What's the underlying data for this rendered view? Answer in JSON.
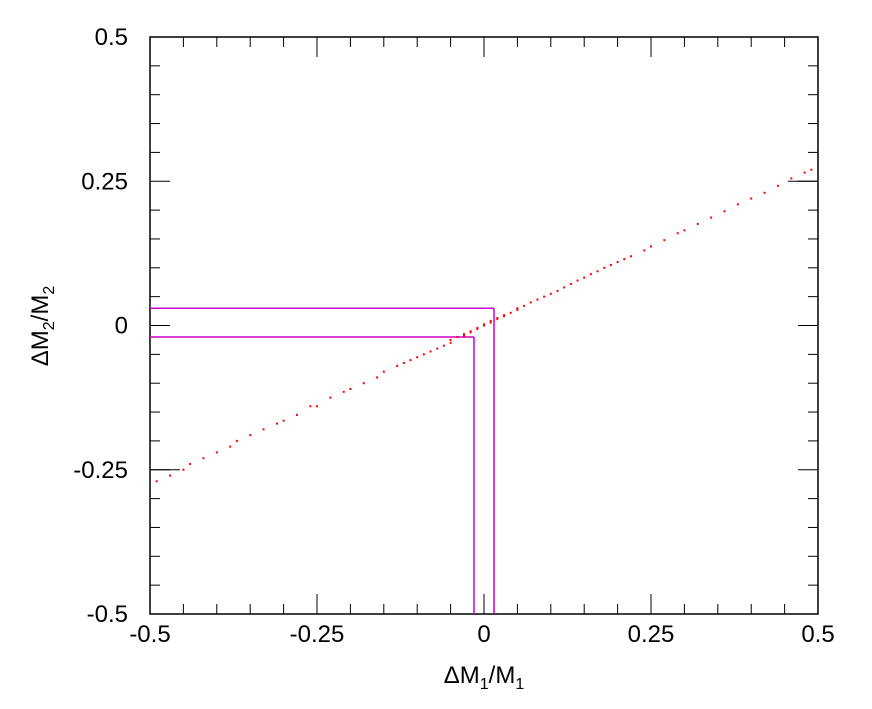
{
  "chart_data": {
    "type": "scatter",
    "title": "",
    "xlabel": "ΔM1/M1",
    "ylabel": "ΔM2/M2",
    "xlabel_parts": {
      "a": "ΔM",
      "a_sub": "1",
      "mid": "/M",
      "b_sub": "1"
    },
    "ylabel_parts": {
      "a": "ΔM",
      "a_sub": "2",
      "mid": "/M",
      "b_sub": "2"
    },
    "xlim": [
      -0.5,
      0.5
    ],
    "ylim": [
      -0.5,
      0.5
    ],
    "xticks": [
      -0.5,
      -0.25,
      0,
      0.25,
      0.5
    ],
    "yticks": [
      -0.5,
      -0.25,
      0,
      0.25,
      0.5
    ],
    "xtick_labels": [
      "-0.5",
      "-0.25",
      "0",
      "0.25",
      "0.5"
    ],
    "ytick_labels": [
      "-0.5",
      "-0.25",
      "0",
      "0.25",
      "0.5"
    ],
    "grid": false,
    "point_color": "#ff0000",
    "guide_color": "#cc00cc",
    "series": [
      {
        "points_note": "approximate sample of the visible scatter cloud, tightly clustered along y ≈ 0.55·x",
        "x": [
          -0.49,
          -0.47,
          -0.45,
          -0.44,
          -0.42,
          -0.4,
          -0.38,
          -0.37,
          -0.35,
          -0.33,
          -0.31,
          -0.3,
          -0.28,
          -0.26,
          -0.25,
          -0.23,
          -0.21,
          -0.2,
          -0.18,
          -0.16,
          -0.15,
          -0.13,
          -0.12,
          -0.11,
          -0.1,
          -0.09,
          -0.08,
          -0.07,
          -0.06,
          -0.05,
          -0.05,
          -0.04,
          -0.03,
          -0.03,
          -0.02,
          -0.02,
          -0.01,
          -0.01,
          0.0,
          0.0,
          0.01,
          0.01,
          0.02,
          0.02,
          0.03,
          0.03,
          0.04,
          0.05,
          0.05,
          0.06,
          0.07,
          0.08,
          0.09,
          0.1,
          0.11,
          0.12,
          0.13,
          0.14,
          0.15,
          0.16,
          0.17,
          0.18,
          0.19,
          0.2,
          0.21,
          0.22,
          0.24,
          0.25,
          0.27,
          0.29,
          0.3,
          0.32,
          0.34,
          0.36,
          0.38,
          0.4,
          0.42,
          0.44,
          0.46,
          0.48,
          0.49
        ],
        "y": [
          -0.27,
          -0.26,
          -0.25,
          -0.24,
          -0.23,
          -0.22,
          -0.21,
          -0.2,
          -0.19,
          -0.18,
          -0.17,
          -0.165,
          -0.155,
          -0.14,
          -0.14,
          -0.125,
          -0.115,
          -0.11,
          -0.1,
          -0.09,
          -0.08,
          -0.07,
          -0.065,
          -0.06,
          -0.055,
          -0.05,
          -0.045,
          -0.04,
          -0.035,
          -0.03,
          -0.025,
          -0.02,
          -0.018,
          -0.015,
          -0.012,
          -0.01,
          -0.006,
          -0.004,
          0.0,
          0.002,
          0.005,
          0.008,
          0.011,
          0.013,
          0.016,
          0.018,
          0.022,
          0.027,
          0.03,
          0.034,
          0.04,
          0.045,
          0.05,
          0.055,
          0.06,
          0.066,
          0.072,
          0.078,
          0.083,
          0.089,
          0.094,
          0.1,
          0.105,
          0.11,
          0.115,
          0.12,
          0.13,
          0.137,
          0.148,
          0.16,
          0.165,
          0.176,
          0.187,
          0.198,
          0.21,
          0.22,
          0.23,
          0.242,
          0.255,
          0.265,
          0.27
        ]
      }
    ],
    "guides": {
      "horizontal_upper": {
        "y": 0.03,
        "x_end": 0.015
      },
      "horizontal_lower": {
        "y": -0.02,
        "x_end": -0.015
      },
      "vertical_left": {
        "x": -0.015,
        "y_end": -0.02
      },
      "vertical_right": {
        "x": 0.015,
        "y_end": 0.03
      }
    },
    "right_axis_marker": {
      "y": 0.25
    },
    "left_axis_marker": {
      "y": -0.25
    }
  }
}
